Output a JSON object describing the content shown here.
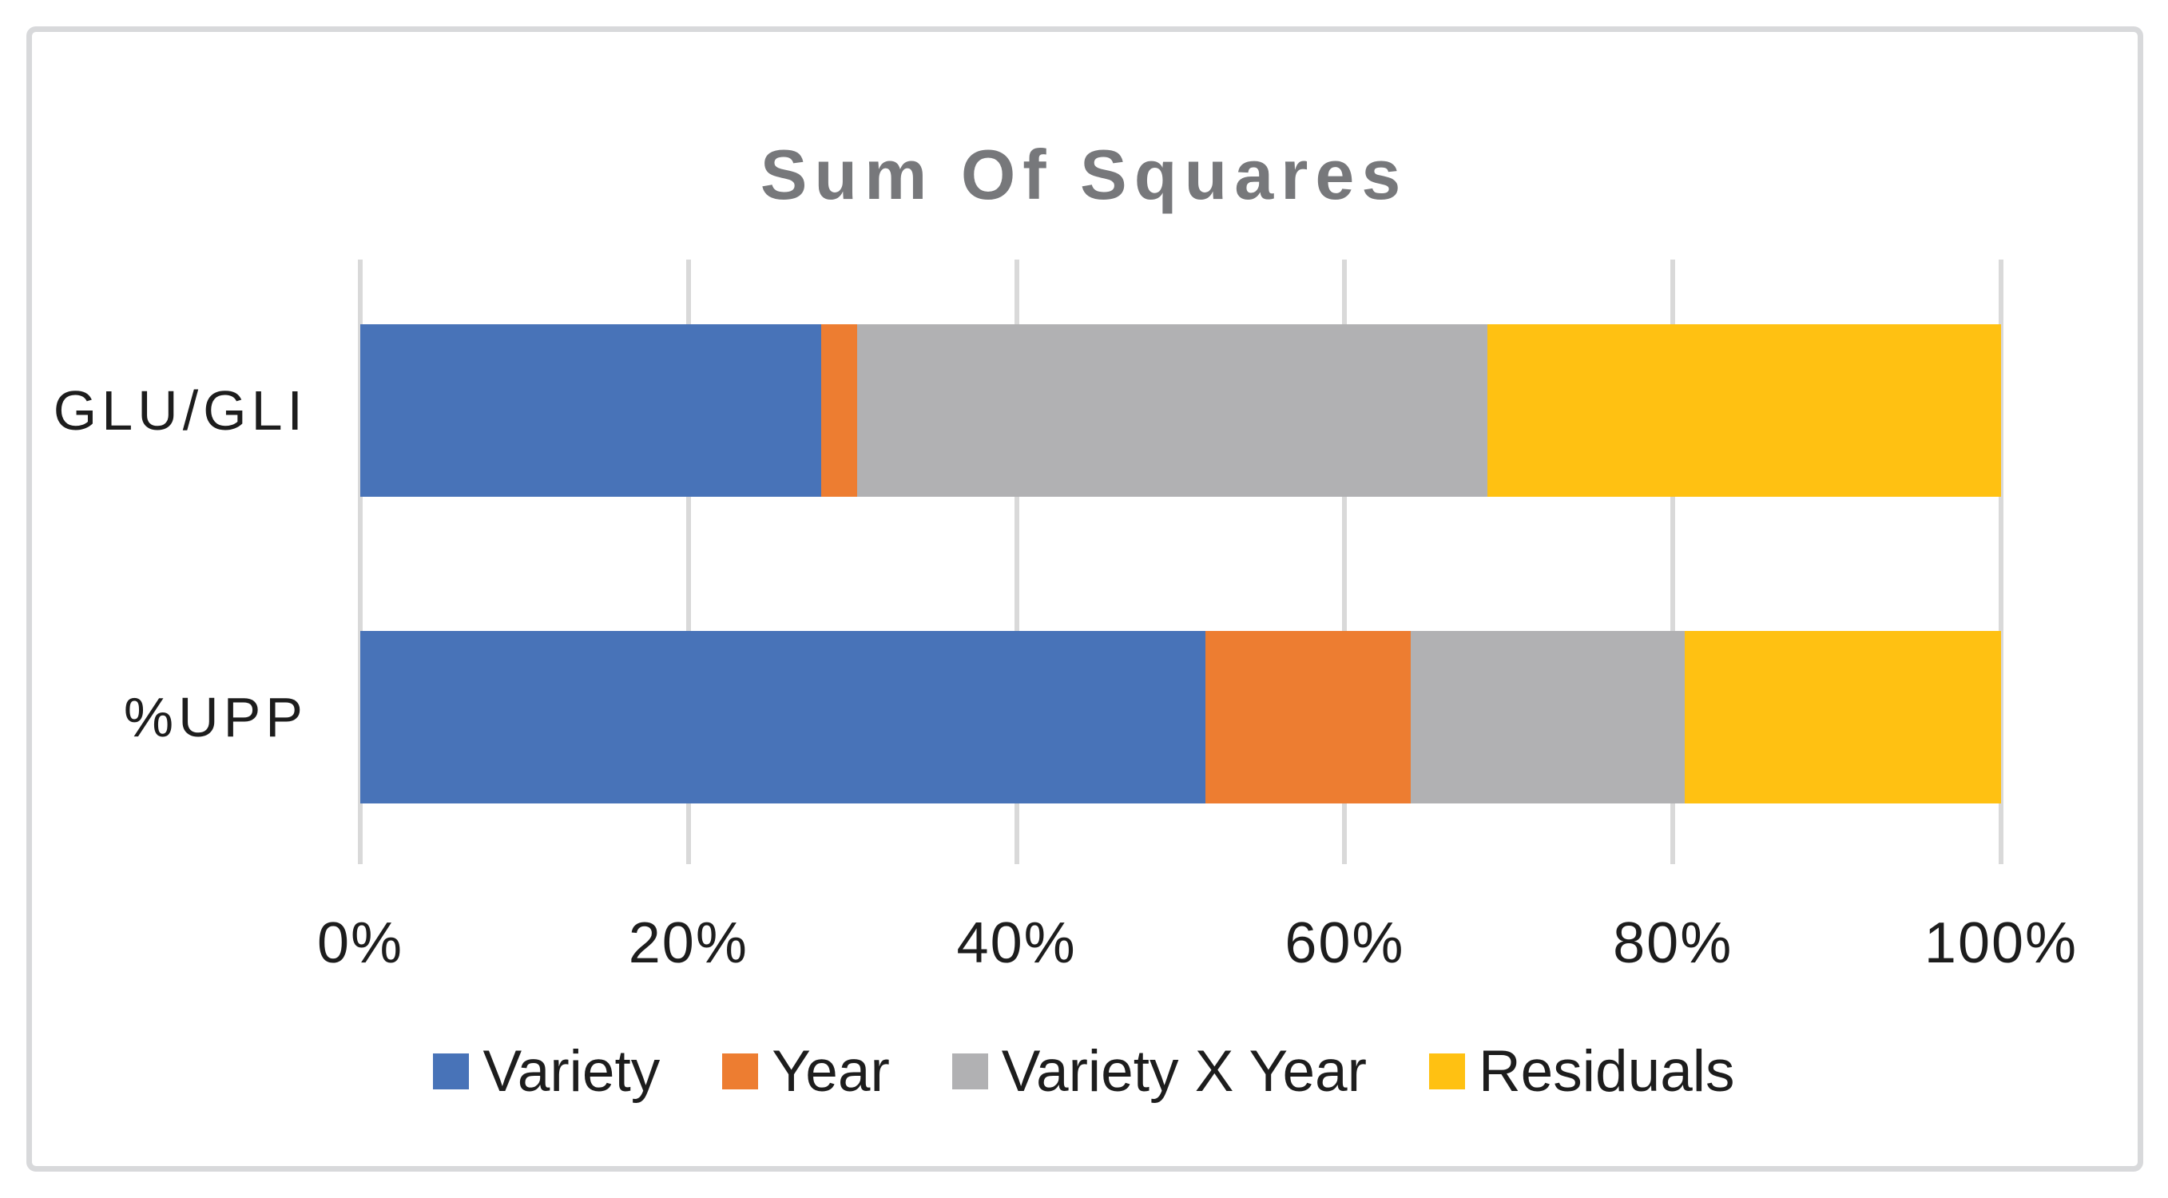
{
  "chart": {
    "title": "Sum Of Squares"
  },
  "chart_data": {
    "type": "bar",
    "orientation": "horizontal",
    "stacked": true,
    "stack_unit": "percent",
    "title": "Sum Of Squares",
    "categories": [
      "GLU/GLI",
      "%UPP"
    ],
    "series": [
      {
        "name": "Variety",
        "color": "#4873b8",
        "values": [
          28.1,
          51.5
        ]
      },
      {
        "name": "Year",
        "color": "#ed7d31",
        "values": [
          2.2,
          12.5
        ]
      },
      {
        "name": "Variety X Year",
        "color": "#b1b1b3",
        "values": [
          38.4,
          16.7
        ]
      },
      {
        "name": "Residuals",
        "color": "#ffc112",
        "values": [
          31.3,
          19.3
        ]
      }
    ],
    "x_ticks": [
      "0%",
      "20%",
      "40%",
      "60%",
      "80%",
      "100%"
    ],
    "xlim": [
      0,
      100
    ],
    "grid": true,
    "legend_position": "bottom",
    "legend": [
      "Variety",
      "Year",
      "Variety X Year",
      "Residuals"
    ]
  },
  "style": {
    "title_color": "#77787b",
    "text_color": "#1d1d1d",
    "gridline_color": "#d9d9d9",
    "frame_border_color": "#d8d9db",
    "background": "#ffffff"
  }
}
